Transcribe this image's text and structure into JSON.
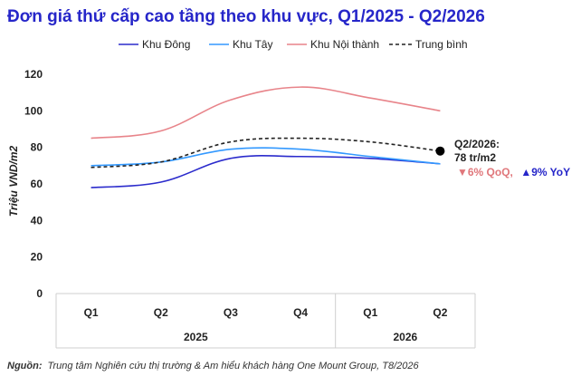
{
  "chart_data": {
    "type": "line",
    "title": "Đơn giá thứ cấp cao tầng theo khu vực, Q1/2025 - Q2/2026",
    "ylabel": "Triệu VND/m2",
    "ylim": [
      0,
      120
    ],
    "yticks": [
      0,
      20,
      40,
      60,
      80,
      100,
      120
    ],
    "categories": [
      "Q1",
      "Q2",
      "Q3",
      "Q4",
      "Q1",
      "Q2"
    ],
    "year_groups": [
      {
        "label": "2025",
        "span": [
          0,
          3
        ]
      },
      {
        "label": "2026",
        "span": [
          4,
          5
        ]
      }
    ],
    "grid": false,
    "legend_position": "top",
    "series": [
      {
        "name": "Khu Đông",
        "values": [
          58,
          61,
          74,
          75,
          74,
          71
        ],
        "color": "#2b2bcc",
        "dash": false
      },
      {
        "name": "Khu Tây",
        "values": [
          70,
          72,
          79,
          79,
          75,
          71
        ],
        "color": "#3399ff",
        "dash": false
      },
      {
        "name": "Khu Nội thành",
        "values": [
          85,
          89,
          106,
          113,
          107,
          100
        ],
        "color": "#e8848a",
        "dash": false
      },
      {
        "name": "Trung bình",
        "values": [
          69,
          72,
          83,
          85,
          83,
          78
        ],
        "color": "#222222",
        "dash": true
      }
    ],
    "annotation": {
      "line1": "Q2/2026:",
      "line2": "78 tr/m2",
      "qoq": "▼6% QoQ,",
      "yoy": "▲9% YoY",
      "value": 78
    },
    "source_label": "Nguồn:",
    "source_text": "Trung tâm Nghiên cứu thị trường & Am hiểu khách hàng One Mount Group, T8/2026"
  }
}
